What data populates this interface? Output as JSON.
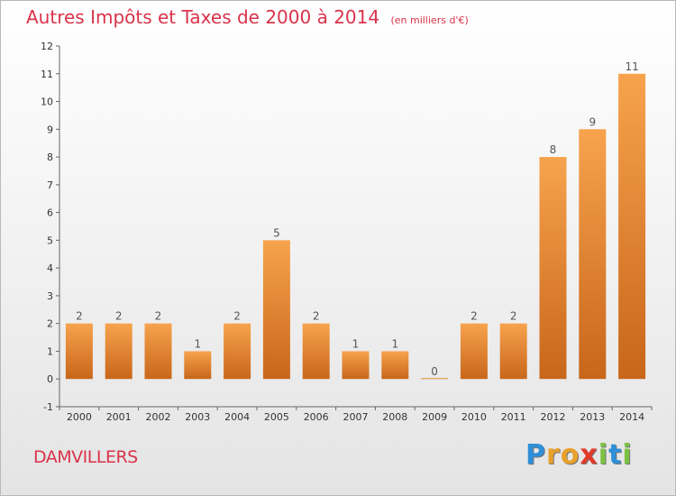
{
  "header": {
    "title": "Autres Impôts et Taxes de 2000 à 2014",
    "subtitle": "(en milliers d'€)"
  },
  "footer": {
    "place": "DAMVILLERS",
    "logo_letters": [
      {
        "ch": "P",
        "color": "#2f8fd8"
      },
      {
        "ch": "r",
        "color": "#e8a12a"
      },
      {
        "ch": "o",
        "color": "#e8a12a"
      },
      {
        "ch": "x",
        "color": "#e23a2a"
      },
      {
        "ch": "i",
        "color": "#7cc242"
      },
      {
        "ch": "t",
        "color": "#2f8fd8"
      },
      {
        "ch": "i",
        "color": "#7cc242"
      }
    ]
  },
  "chart_data": {
    "type": "bar",
    "categories": [
      "2000",
      "2001",
      "2002",
      "2003",
      "2004",
      "2005",
      "2006",
      "2007",
      "2008",
      "2009",
      "2010",
      "2011",
      "2012",
      "2013",
      "2014"
    ],
    "values": [
      2,
      2,
      2,
      1,
      2,
      5,
      2,
      1,
      1,
      0,
      2,
      2,
      8,
      9,
      11
    ],
    "data_labels": [
      "2",
      "2",
      "2",
      "1",
      "2",
      "5",
      "2",
      "1",
      "1",
      "0",
      "2",
      "2",
      "8",
      "9",
      "11"
    ],
    "yticks": [
      "-1",
      "0",
      "1",
      "2",
      "3",
      "4",
      "5",
      "6",
      "7",
      "8",
      "9",
      "10",
      "11",
      "12"
    ],
    "ylim": [
      -1,
      12
    ],
    "grid": false,
    "colors": {
      "bar_top": "#f7a34d",
      "bar_bottom": "#c8661a",
      "title": "#d9334b"
    }
  }
}
